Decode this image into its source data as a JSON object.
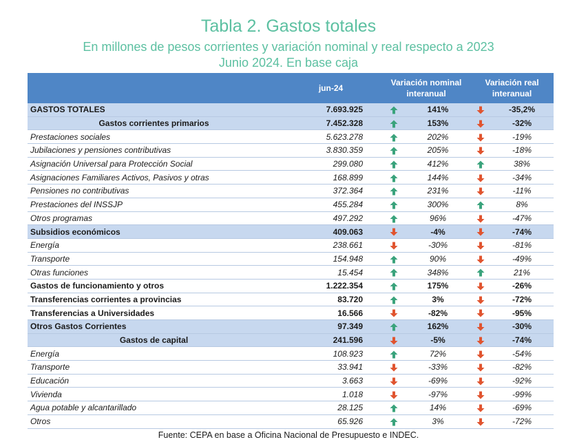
{
  "header": {
    "title": "Tabla 2. Gastos totales",
    "subtitle": "En millones de pesos corrientes y variación nominal y real respecto a 2023",
    "subtitle2": "Junio 2024. En base caja"
  },
  "columns": {
    "period": "jun-24",
    "nominal": "Variación nominal interanual",
    "real": "Variación real interanual"
  },
  "rows": [
    {
      "label": "GASTOS TOTALES",
      "amount": "7.693.925",
      "nominal": "141%",
      "nominal_trend": "up",
      "real": "-35,2%",
      "real_trend": "down",
      "style": "blue",
      "align": "left"
    },
    {
      "label": "Gastos corrientes primarios",
      "amount": "7.452.328",
      "nominal": "153%",
      "nominal_trend": "up",
      "real": "-32%",
      "real_trend": "down",
      "style": "blue",
      "align": "center"
    },
    {
      "label": "Prestaciones sociales",
      "amount": "5.623.278",
      "nominal": "202%",
      "nominal_trend": "up",
      "real": "-19%",
      "real_trend": "down",
      "style": "ital"
    },
    {
      "label": "Jubilaciones y pensiones contributivas",
      "amount": "3.830.359",
      "nominal": "205%",
      "nominal_trend": "up",
      "real": "-18%",
      "real_trend": "down",
      "style": "ital"
    },
    {
      "label": "Asignación Universal para Protección Social",
      "amount": "299.080",
      "nominal": "412%",
      "nominal_trend": "up",
      "real": "38%",
      "real_trend": "up",
      "style": "ital"
    },
    {
      "label": "Asignaciones Familiares Activos, Pasivos y otras",
      "amount": "168.899",
      "nominal": "144%",
      "nominal_trend": "up",
      "real": "-34%",
      "real_trend": "down",
      "style": "ital"
    },
    {
      "label": "Pensiones no contributivas",
      "amount": "372.364",
      "nominal": "231%",
      "nominal_trend": "up",
      "real": "-11%",
      "real_trend": "down",
      "style": "ital"
    },
    {
      "label": "Prestaciones del INSSJP",
      "amount": "455.284",
      "nominal": "300%",
      "nominal_trend": "up",
      "real": "8%",
      "real_trend": "up",
      "style": "ital"
    },
    {
      "label": "Otros programas",
      "amount": "497.292",
      "nominal": "96%",
      "nominal_trend": "up",
      "real": "-47%",
      "real_trend": "down",
      "style": "ital"
    },
    {
      "label": "Subsidios económicos",
      "amount": "409.063",
      "nominal": "-4%",
      "nominal_trend": "down",
      "real": "-74%",
      "real_trend": "down",
      "style": "blue",
      "align": "left"
    },
    {
      "label": "Energía",
      "amount": "238.661",
      "nominal": "-30%",
      "nominal_trend": "down",
      "real": "-81%",
      "real_trend": "down",
      "style": "ital"
    },
    {
      "label": "Transporte",
      "amount": "154.948",
      "nominal": "90%",
      "nominal_trend": "up",
      "real": "-49%",
      "real_trend": "down",
      "style": "ital"
    },
    {
      "label": "Otras funciones",
      "amount": "15.454",
      "nominal": "348%",
      "nominal_trend": "up",
      "real": "21%",
      "real_trend": "up",
      "style": "ital"
    },
    {
      "label": "Gastos de funcionamiento y otros",
      "amount": "1.222.354",
      "nominal": "175%",
      "nominal_trend": "up",
      "real": "-26%",
      "real_trend": "down",
      "style": "bold"
    },
    {
      "label": "Transferencias corrientes a provincias",
      "amount": "83.720",
      "nominal": "3%",
      "nominal_trend": "up",
      "real": "-72%",
      "real_trend": "down",
      "style": "bold"
    },
    {
      "label": "Transferencias a Universidades",
      "amount": "16.566",
      "nominal": "-82%",
      "nominal_trend": "down",
      "real": "-95%",
      "real_trend": "down",
      "style": "bold"
    },
    {
      "label": "Otros Gastos Corrientes",
      "amount": "97.349",
      "nominal": "162%",
      "nominal_trend": "up",
      "real": "-30%",
      "real_trend": "down",
      "style": "blue",
      "align": "left"
    },
    {
      "label": "Gastos de capital",
      "amount": "241.596",
      "nominal": "-5%",
      "nominal_trend": "down",
      "real": "-74%",
      "real_trend": "down",
      "style": "blue",
      "align": "center"
    },
    {
      "label": "Energía",
      "amount": "108.923",
      "nominal": "72%",
      "nominal_trend": "up",
      "real": "-54%",
      "real_trend": "down",
      "style": "ital"
    },
    {
      "label": "Transporte",
      "amount": "33.941",
      "nominal": "-33%",
      "nominal_trend": "down",
      "real": "-82%",
      "real_trend": "down",
      "style": "ital"
    },
    {
      "label": "Educación",
      "amount": "3.663",
      "nominal": "-69%",
      "nominal_trend": "down",
      "real": "-92%",
      "real_trend": "down",
      "style": "ital"
    },
    {
      "label": "Vivienda",
      "amount": "1.018",
      "nominal": "-97%",
      "nominal_trend": "down",
      "real": "-99%",
      "real_trend": "down",
      "style": "ital"
    },
    {
      "label": "Agua potable y alcantarillado",
      "amount": "28.125",
      "nominal": "14%",
      "nominal_trend": "up",
      "real": "-69%",
      "real_trend": "down",
      "style": "ital"
    },
    {
      "label": "Otros",
      "amount": "65.926",
      "nominal": "3%",
      "nominal_trend": "up",
      "real": "-72%",
      "real_trend": "down",
      "style": "ital"
    }
  ],
  "icons": {
    "up": "arrow-up-icon",
    "down": "arrow-down-icon"
  },
  "colors": {
    "up": "#3aa37c",
    "down": "#e0542f",
    "header_bg": "#4f86c6",
    "band_bg": "#c7d8ef",
    "title": "#5cc0a1"
  },
  "source": "Fuente: CEPA en base a Oficina Nacional de Presupuesto e INDEC."
}
